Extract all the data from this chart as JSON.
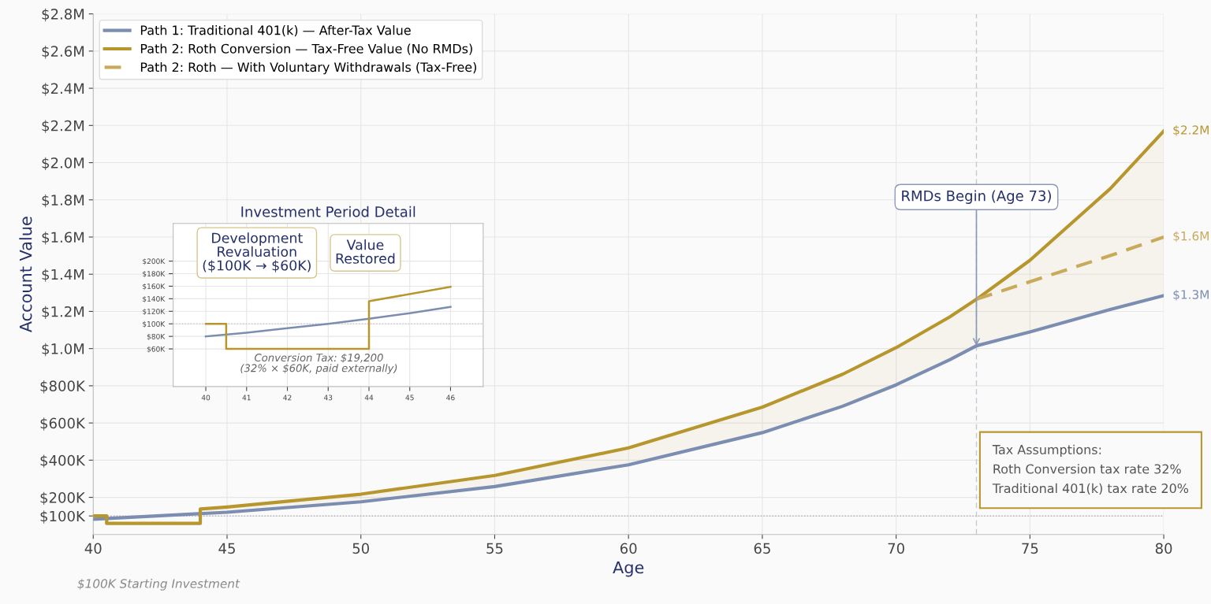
{
  "chart_data": [
    {
      "type": "line",
      "xlabel": "Age",
      "ylabel": "Account Value",
      "xlim": [
        40,
        80
      ],
      "ylim": [
        0,
        2800000
      ],
      "xticks": [
        40,
        45,
        50,
        55,
        60,
        65,
        70,
        75,
        80
      ],
      "yticks": [
        {
          "value": 100000,
          "label": "$100K"
        },
        {
          "value": 200000,
          "label": "$200K"
        },
        {
          "value": 400000,
          "label": "$400K"
        },
        {
          "value": 600000,
          "label": "$600K"
        },
        {
          "value": 800000,
          "label": "$800K"
        },
        {
          "value": 1000000,
          "label": "$1.0M"
        },
        {
          "value": 1200000,
          "label": "$1.2M"
        },
        {
          "value": 1400000,
          "label": "$1.4M"
        },
        {
          "value": 1600000,
          "label": "$1.6M"
        },
        {
          "value": 1800000,
          "label": "$1.8M"
        },
        {
          "value": 2000000,
          "label": "$2.0M"
        },
        {
          "value": 2200000,
          "label": "$2.2M"
        },
        {
          "value": 2400000,
          "label": "$2.4M"
        },
        {
          "value": 2600000,
          "label": "$2.6M"
        },
        {
          "value": 2800000,
          "label": "$2.8M"
        }
      ],
      "grid": true,
      "legend": "top left",
      "series": [
        {
          "name": "Path 1: Traditional 401(k) — After-Tax Value",
          "color": "#7b8db0",
          "x": [
            40,
            45,
            50,
            55,
            60,
            65,
            68,
            70,
            72,
            73,
            75,
            78,
            80
          ],
          "values": [
            82000,
            120000,
            176000,
            258000,
            375000,
            548000,
            690000,
            805000,
            940000,
            1015000,
            1090000,
            1210000,
            1285000
          ],
          "value_labels": [
            null,
            null,
            null,
            null,
            null,
            null,
            null,
            null,
            null,
            null,
            null,
            null,
            "$1.3M"
          ]
        },
        {
          "name": "Path 2: Roth Conversion — Tax-Free Value (No RMDs)",
          "color": "#b8962e",
          "x": [
            40,
            40.5,
            40.5,
            44,
            44,
            45,
            50,
            55,
            60,
            65,
            68,
            70,
            72,
            73,
            75,
            78,
            80
          ],
          "values": [
            100000,
            100000,
            60000,
            60000,
            137000,
            148000,
            217000,
            318000,
            466000,
            685000,
            862000,
            1005000,
            1170000,
            1265000,
            1475000,
            1860000,
            2170000
          ],
          "lower": [
            null,
            null,
            null,
            null,
            112000,
            120000,
            176000,
            258000,
            375000,
            548000,
            690000,
            805000,
            940000,
            1015000,
            1090000,
            1210000,
            1285000
          ],
          "upper": [
            null,
            null,
            null,
            null,
            137000,
            148000,
            217000,
            318000,
            466000,
            685000,
            862000,
            1005000,
            1170000,
            1265000,
            1475000,
            1860000,
            2170000
          ],
          "value_labels": [
            null,
            null,
            null,
            null,
            null,
            null,
            null,
            null,
            null,
            null,
            null,
            null,
            null,
            null,
            null,
            null,
            "$2.2M"
          ]
        },
        {
          "name": "Path 2: Roth — With Voluntary Withdrawals (Tax-Free)",
          "color": "#c9a95a",
          "line_style": "dashed",
          "x": [
            73,
            75,
            78,
            80
          ],
          "values": [
            1265000,
            1360000,
            1500000,
            1600000
          ],
          "value_labels": [
            null,
            null,
            null,
            "$1.6M"
          ]
        }
      ],
      "ref_lines": [
        {
          "axis": "x",
          "value": 73,
          "color": "#c3cad6",
          "line_style": "dashed"
        },
        {
          "axis": "y",
          "value": 100000,
          "color": "#b0b0b0",
          "line_style": "dotted"
        }
      ],
      "annotations": [
        {
          "text": "RMDs Begin (Age 73)",
          "x": 73,
          "y": 1015000
        },
        "Tax Assumptions:\nRoth Conversion tax rate 32%\nTraditional 401(k) tax rate 20%",
        "$100K Starting Investment"
      ]
    },
    {
      "type": "line",
      "title": "Investment Period Detail",
      "xlim": [
        39.2,
        46.8
      ],
      "ylim": [
        0,
        260000
      ],
      "xticks": [
        40,
        41,
        42,
        43,
        44,
        45,
        46
      ],
      "yticks": [
        {
          "value": 60000,
          "label": "$60K"
        },
        {
          "value": 80000,
          "label": "$80K"
        },
        {
          "value": 100000,
          "label": "$100K"
        },
        {
          "value": 120000,
          "label": "$120K"
        },
        {
          "value": 140000,
          "label": "$140K"
        },
        {
          "value": 160000,
          "label": "$160K"
        },
        {
          "value": 180000,
          "label": "$180K"
        },
        {
          "value": 200000,
          "label": "$200K"
        }
      ],
      "grid": true,
      "series": [
        {
          "color": "#7b8db0",
          "x": [
            40,
            41,
            42,
            43,
            44,
            45,
            46
          ],
          "values": [
            80000,
            86000,
            93000,
            100000,
            108000,
            117000,
            127000
          ]
        },
        {
          "color": "#b8962e",
          "x": [
            40,
            40.5,
            40.5,
            44,
            44,
            46
          ],
          "values": [
            100000,
            100000,
            60000,
            60000,
            136000,
            159000
          ]
        }
      ],
      "ref_lines": [
        {
          "axis": "y",
          "value": 100000,
          "color": "#c8c8c8",
          "line_style": "dotted"
        }
      ],
      "annotations": [
        "Development\nRevaluation\n($100K → $60K)",
        "Value\nRestored",
        "Conversion Tax: $19,200\n(32% × $60K, paid externally)"
      ]
    }
  ]
}
